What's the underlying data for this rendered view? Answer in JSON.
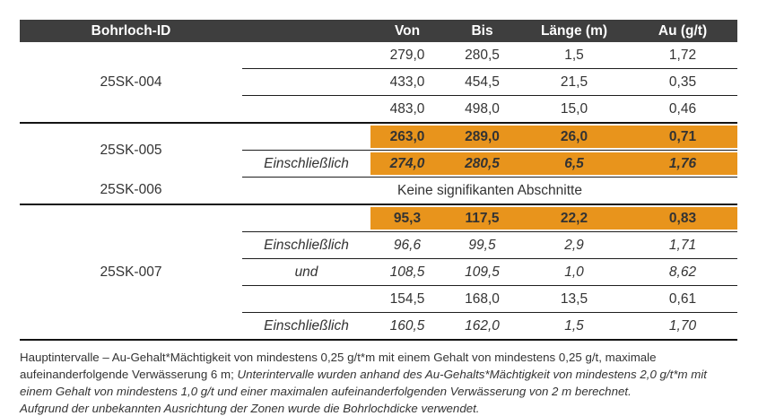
{
  "header": {
    "id": "Bohrloch-ID",
    "qual": "",
    "von": "Von",
    "bis": "Bis",
    "laenge": "Länge (m)",
    "au": "Au (g/t)"
  },
  "rows": [
    {
      "hole": "25SK-004",
      "qual": "",
      "von": "279,0",
      "bis": "280,5",
      "laenge": "1,5",
      "au": "1,72"
    },
    {
      "qual": "",
      "von": "433,0",
      "bis": "454,5",
      "laenge": "21,5",
      "au": "0,35"
    },
    {
      "qual": "",
      "von": "483,0",
      "bis": "498,0",
      "laenge": "15,0",
      "au": "0,46"
    },
    {
      "hole": "25SK-005",
      "qual": "",
      "von": "263,0",
      "bis": "289,0",
      "laenge": "26,0",
      "au": "0,71",
      "highlighted": true
    },
    {
      "qual": "Einschließlich",
      "von": "274,0",
      "bis": "280,5",
      "laenge": "6,5",
      "au": "1,76",
      "highlighted": true
    },
    {
      "hole": "25SK-006",
      "note": "Keine signifikanten Abschnitte"
    },
    {
      "hole": "25SK-007",
      "qual": "",
      "von": "95,3",
      "bis": "117,5",
      "laenge": "22,2",
      "au": "0,83",
      "highlighted": true
    },
    {
      "qual": "Einschließlich",
      "von": "96,6",
      "bis": "99,5",
      "laenge": "2,9",
      "au": "1,71"
    },
    {
      "qual": "und",
      "von": "108,5",
      "bis": "109,5",
      "laenge": "1,0",
      "au": "8,62"
    },
    {
      "qual": "",
      "von": "154,5",
      "bis": "168,0",
      "laenge": "13,5",
      "au": "0,61"
    },
    {
      "qual": "Einschließlich",
      "von": "160,5",
      "bis": "162,0",
      "laenge": "1,5",
      "au": "1,70"
    }
  ],
  "footnote": {
    "main_regular": "Hauptintervalle – Au-Gehalt*Mächtigkeit von mindestens 0,25 g/t*m mit einem Gehalt von mindestens 0,25 g/t, maximale aufeinanderfolgende Verwässerung 6 m; ",
    "main_italic": "Unterintervalle wurden anhand des Au-Gehalts*Mächtigkeit von mindestens 2,0 g/t*m mit einem Gehalt von mindestens 1,0 g/t und einer maximalen aufeinanderfolgenden Verwässerung von 2 m berechnet.",
    "second_line": "Aufgrund der unbekannten Ausrichtung der Zonen wurde die Bohrlochdicke verwendet."
  },
  "colors": {
    "header_bg": "#3E3E3E",
    "header_text": "#FFFFFF",
    "highlight": "#E8941C",
    "highlight_text": "#2E1700",
    "body_text": "#333333",
    "rule": "#141414"
  }
}
